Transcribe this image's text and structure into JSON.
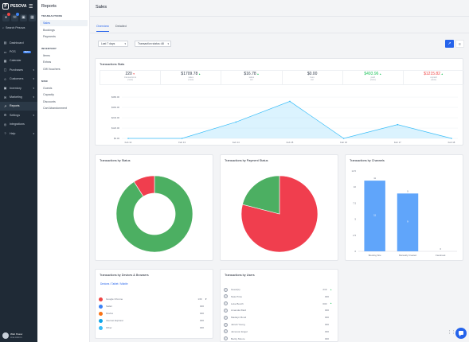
{
  "brand": "PESOVA",
  "quick_counts": [
    "",
    "3"
  ],
  "search_label": "Search Pesova",
  "nav": [
    {
      "label": "Dashboard",
      "icon": "dashboard-icon",
      "glyph": "▤",
      "beta": "",
      "active": false,
      "chev": false
    },
    {
      "label": "POS",
      "icon": "pos-icon",
      "glyph": "▭",
      "beta": "BETA",
      "active": false,
      "chev": false
    },
    {
      "label": "Calendar",
      "icon": "calendar-icon",
      "glyph": "▦",
      "beta": "",
      "active": false,
      "chev": false
    },
    {
      "label": "Purchases",
      "icon": "purchases-icon",
      "glyph": "▢",
      "beta": "",
      "active": false,
      "chev": true
    },
    {
      "label": "Customers",
      "icon": "customers-icon",
      "glyph": "☺",
      "beta": "",
      "active": false,
      "chev": true
    },
    {
      "label": "Inventory",
      "icon": "inventory-icon",
      "glyph": "▣",
      "beta": "",
      "active": false,
      "chev": true
    },
    {
      "label": "Marketing",
      "icon": "marketing-icon",
      "glyph": "✉",
      "beta": "",
      "active": false,
      "chev": true
    },
    {
      "label": "Reports",
      "icon": "reports-icon",
      "glyph": "↗",
      "beta": "",
      "active": true,
      "chev": false
    },
    {
      "label": "Settings",
      "icon": "settings-icon",
      "glyph": "⚙",
      "beta": "",
      "active": false,
      "chev": true
    },
    {
      "label": "Integrations",
      "icon": "integrations-icon",
      "glyph": "◎",
      "beta": "",
      "active": false,
      "chev": false
    },
    {
      "label": "Help",
      "icon": "help-icon",
      "glyph": "?",
      "beta": "",
      "active": false,
      "chev": true
    }
  ],
  "user": {
    "name": "Web Pesov",
    "sub": "Ana Admin"
  },
  "subnav": {
    "title": "Reports",
    "sections": [
      {
        "heading": "TRANSACTIONS",
        "items": [
          {
            "label": "Sales",
            "active": true
          },
          {
            "label": "Bookings",
            "active": false
          },
          {
            "label": "Payments",
            "active": false
          }
        ]
      },
      {
        "heading": "INVENTORY",
        "items": [
          {
            "label": "Items",
            "active": false
          },
          {
            "label": "Extras",
            "active": false
          },
          {
            "label": "Gift Vouchers",
            "active": false
          }
        ]
      },
      {
        "heading": "MISC",
        "items": [
          {
            "label": "Guests",
            "active": false
          },
          {
            "label": "Capacity",
            "active": false
          },
          {
            "label": "Discounts",
            "active": false
          },
          {
            "label": "Cart Abandonment",
            "active": false
          }
        ]
      }
    ]
  },
  "page": {
    "title": "Sales",
    "tabs": [
      "Overview",
      "Detailed"
    ]
  },
  "filters": {
    "range": "Last 7 days",
    "status": "Transaction status: All"
  },
  "stats_card": {
    "title": "Transactions Stats",
    "stats": [
      {
        "value": "220",
        "label": "transactions",
        "change": "(new)",
        "dir": "down",
        "tone": ""
      },
      {
        "value": "$1709.78",
        "label": "sales",
        "change": "(new)",
        "dir": "up",
        "tone": ""
      },
      {
        "value": "$16.78",
        "label": "sales",
        "change": "avr",
        "dir": "up",
        "tone": ""
      },
      {
        "value": "$0.00",
        "label": "fees",
        "change": "avr",
        "dir": "",
        "tone": ""
      },
      {
        "value": "$493.96",
        "label": "paid",
        "change": "(new)",
        "dir": "up",
        "tone": "g"
      },
      {
        "value": "$1215.82",
        "label": "unpaid",
        "change": "(new)",
        "dir": "up",
        "tone": "r"
      }
    ]
  },
  "chart_data": [
    {
      "type": "area",
      "title": "",
      "categories": [
        "Feb 12",
        "Feb 13",
        "Feb 14",
        "Feb 15",
        "Feb 16",
        "Feb 17",
        "Feb 18"
      ],
      "values": [
        0,
        0,
        190,
        430,
        0,
        160,
        0
      ],
      "yticks": [
        "$0.00",
        "$120.00",
        "$240.00",
        "$360.00",
        "$480.00"
      ],
      "ylim": [
        0,
        480
      ],
      "color": "#38bdf8"
    },
    {
      "type": "pie",
      "title": "Transactions by Status",
      "labels": [
        "Completed",
        "Pending"
      ],
      "values": [
        91,
        9
      ],
      "colors": [
        "#4caf62",
        "#f03e4e"
      ],
      "donut": true
    },
    {
      "type": "pie",
      "title": "Transactions by Payment Status",
      "labels": [
        "Unpaid",
        "Paid"
      ],
      "values": [
        79,
        21
      ],
      "colors": [
        "#f03e4e",
        "#4caf62"
      ],
      "donut": false
    },
    {
      "type": "bar",
      "title": "Transactions by Channels",
      "categories": [
        "Booking Site",
        "Manually Created",
        "Facebook"
      ],
      "values": [
        11,
        9,
        0
      ],
      "yticks": [
        "0",
        "2.5",
        "5",
        "7.5",
        "10",
        "12.5"
      ],
      "ylim": [
        0,
        12.5
      ],
      "color": "#60a5fa",
      "inner": [
        "11",
        "9",
        ""
      ]
    }
  ],
  "devices": {
    "title": "Transactions by Devices & Browsers",
    "subtabs": "Devices / Tablet / Mobile",
    "rows": [
      {
        "name": "Google Chrome",
        "value": "139",
        "color": "#ef4444",
        "icon": "chrome-icon"
      },
      {
        "name": "Safari",
        "value": "000",
        "color": "#3b82f6",
        "icon": "safari-icon"
      },
      {
        "name": "Firefox",
        "value": "000",
        "color": "#f97316",
        "icon": "firefox-icon"
      },
      {
        "name": "Internet Explorer",
        "value": "000",
        "color": "#0ea5e9",
        "icon": "ie-icon"
      },
      {
        "name": "Other",
        "value": "000",
        "color": "#38bdf8",
        "icon": "other-icon"
      }
    ]
  },
  "users": {
    "title": "Transactions by Users",
    "rows": [
      {
        "name": "Guest(s)",
        "value": "219"
      },
      {
        "name": "Nate Price",
        "value": "000"
      },
      {
        "name": "Luke Bunch",
        "value": "000"
      },
      {
        "name": "Amanda Ward",
        "value": "000"
      },
      {
        "name": "Madelyn Bond",
        "value": "000"
      },
      {
        "name": "Jarrah Young",
        "value": "000"
      },
      {
        "name": "Jameson Engel",
        "value": "000"
      },
      {
        "name": "Becky Moore",
        "value": "000"
      }
    ]
  }
}
